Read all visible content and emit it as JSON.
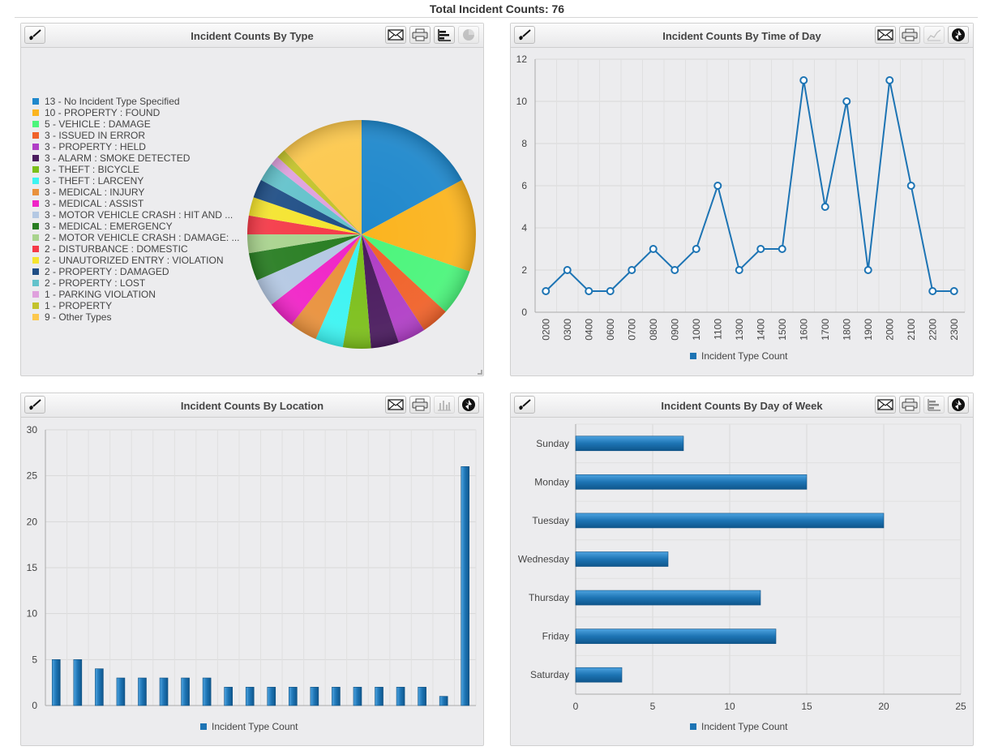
{
  "page": {
    "title": "Total Incident Counts: 76"
  },
  "toolbar_icons": {
    "filter": "filter-brush-icon",
    "email": "email-envelope-icon",
    "print": "printer-icon",
    "bar": "bar-chart-icon",
    "pie": "pie-chart-icon",
    "line": "line-chart-icon",
    "refresh": "refresh-cycle-icon"
  },
  "panels": {
    "type": {
      "title": "Incident Counts By Type"
    },
    "time": {
      "title": "Incident Counts By Time of Day"
    },
    "location": {
      "title": "Incident Counts By Location"
    },
    "dow": {
      "title": "Incident Counts By Day of Week"
    }
  },
  "chart_data": [
    {
      "type": "pie",
      "title": "Incident Counts By Type",
      "legend_position": "left",
      "slices": [
        {
          "label": "13 - No Incident Type Specified",
          "value": 13,
          "color": "#1f88cc"
        },
        {
          "label": "10 - PROPERTY : FOUND",
          "value": 10,
          "color": "#fbb41f"
        },
        {
          "label": "5 - VEHICLE : DAMAGE",
          "value": 5,
          "color": "#4cf57c"
        },
        {
          "label": "3 - ISSUED IN ERROR",
          "value": 3,
          "color": "#f0622a"
        },
        {
          "label": "3 - PROPERTY : HELD",
          "value": 3,
          "color": "#b03ec6"
        },
        {
          "label": "3 - ALARM : SMOKE DETECTED",
          "value": 3,
          "color": "#4a1b5e"
        },
        {
          "label": "3 - THEFT : BICYCLE",
          "value": 3,
          "color": "#7cbf1b"
        },
        {
          "label": "3 - THEFT : LARCENY",
          "value": 3,
          "color": "#3cf4f2"
        },
        {
          "label": "3 - MEDICAL : INJURY",
          "value": 3,
          "color": "#e9913c"
        },
        {
          "label": "3 - MEDICAL : ASSIST",
          "value": 3,
          "color": "#f024c7"
        },
        {
          "label": "3 - MOTOR VEHICLE CRASH : HIT AND ...",
          "value": 3,
          "color": "#b4c8e3"
        },
        {
          "label": "3 - MEDICAL : EMERGENCY",
          "value": 3,
          "color": "#287d22"
        },
        {
          "label": "2 - MOTOR VEHICLE CRASH : DAMAGE: ...",
          "value": 2,
          "color": "#a9d38e"
        },
        {
          "label": "2 - DISTURBANCE : DOMESTIC",
          "value": 2,
          "color": "#f53a48"
        },
        {
          "label": "2 - UNAUTORIZED ENTRY : VIOLATION",
          "value": 2,
          "color": "#f5e42e"
        },
        {
          "label": "2 - PROPERTY : DAMAGED",
          "value": 2,
          "color": "#1f4e86"
        },
        {
          "label": "2 - PROPERTY : LOST",
          "value": 2,
          "color": "#63c2cb"
        },
        {
          "label": "1 - PARKING VIOLATION",
          "value": 1,
          "color": "#dfa1dd"
        },
        {
          "label": "1 - PROPERTY",
          "value": 1,
          "color": "#c3c32c"
        },
        {
          "label": "9 - Other Types",
          "value": 9,
          "color": "#fcc84d"
        }
      ]
    },
    {
      "type": "line",
      "title": "Incident Counts By Time of Day",
      "categories": [
        "0200",
        "0300",
        "0400",
        "0600",
        "0700",
        "0800",
        "0900",
        "1000",
        "1100",
        "1300",
        "1400",
        "1500",
        "1600",
        "1700",
        "1800",
        "1900",
        "2000",
        "2100",
        "2200",
        "2300"
      ],
      "series": [
        {
          "name": "Incident Type Count",
          "values": [
            1,
            2,
            1,
            1,
            2,
            3,
            2,
            3,
            6,
            2,
            3,
            3,
            11,
            5,
            10,
            2,
            11,
            6,
            1,
            1
          ],
          "color": "#1d74b4"
        }
      ],
      "ylim": [
        0,
        12
      ],
      "yticks": [
        0,
        2,
        4,
        6,
        8,
        10,
        12
      ],
      "grid": true,
      "legend_position": "bottom"
    },
    {
      "type": "bar",
      "title": "Incident Counts By Location",
      "categories": [
        "",
        "",
        "",
        "",
        "",
        "",
        "",
        "",
        "",
        "",
        "",
        "",
        "",
        "",
        "",
        "",
        "",
        "",
        "",
        ""
      ],
      "series": [
        {
          "name": "Incident Type Count",
          "values": [
            5,
            5,
            4,
            3,
            3,
            3,
            3,
            3,
            2,
            2,
            2,
            2,
            2,
            2,
            2,
            2,
            2,
            2,
            1,
            26
          ],
          "color": "#1d74b4"
        }
      ],
      "ylim": [
        0,
        30
      ],
      "yticks": [
        0,
        5,
        10,
        15,
        20,
        25,
        30
      ],
      "grid": true,
      "legend_position": "bottom"
    },
    {
      "type": "bar",
      "orientation": "horizontal",
      "title": "Incident Counts By Day of Week",
      "categories": [
        "Sunday",
        "Monday",
        "Tuesday",
        "Wednesday",
        "Thursday",
        "Friday",
        "Saturday"
      ],
      "series": [
        {
          "name": "Incident Type Count",
          "values": [
            7,
            15,
            20,
            6,
            12,
            13,
            3
          ],
          "color": "#1d74b4"
        }
      ],
      "xlim": [
        0,
        25
      ],
      "xticks": [
        0,
        5,
        10,
        15,
        20,
        25
      ],
      "grid": true,
      "legend_position": "bottom"
    }
  ]
}
